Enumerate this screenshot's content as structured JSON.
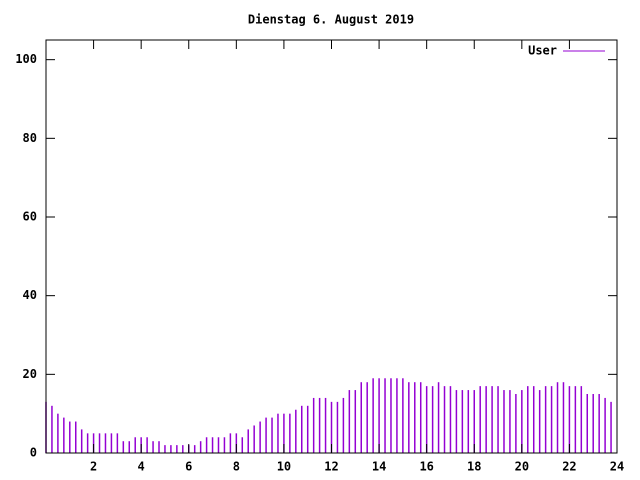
{
  "chart_data": {
    "type": "impulses",
    "title": "Dienstag 6. August 2019",
    "legend": "top-right",
    "xlim": [
      0,
      24
    ],
    "xticks": [
      2,
      4,
      6,
      8,
      10,
      12,
      14,
      16,
      18,
      20,
      22,
      24
    ],
    "ylim": [
      0,
      105
    ],
    "yticks": [
      0,
      20,
      40,
      60,
      80,
      100
    ],
    "x": [
      0,
      0.25,
      0.5,
      0.75,
      1,
      1.25,
      1.5,
      1.75,
      2,
      2.25,
      2.5,
      2.75,
      3,
      3.25,
      3.5,
      3.75,
      4,
      4.25,
      4.5,
      4.75,
      5,
      5.25,
      5.5,
      5.75,
      6,
      6.25,
      6.5,
      6.75,
      7,
      7.25,
      7.5,
      7.75,
      8,
      8.25,
      8.5,
      8.75,
      9,
      9.25,
      9.5,
      9.75,
      10,
      10.25,
      10.5,
      10.75,
      11,
      11.25,
      11.5,
      11.75,
      12,
      12.25,
      12.5,
      12.75,
      13,
      13.25,
      13.5,
      13.75,
      14,
      14.25,
      14.5,
      14.75,
      15,
      15.25,
      15.5,
      15.75,
      16,
      16.25,
      16.5,
      16.75,
      17,
      17.25,
      17.5,
      17.75,
      18,
      18.25,
      18.5,
      18.75,
      19,
      19.25,
      19.5,
      19.75,
      20,
      20.25,
      20.5,
      20.75,
      21,
      21.25,
      21.5,
      21.75,
      22,
      22.25,
      22.5,
      22.75,
      23,
      23.25,
      23.5,
      23.75
    ],
    "series": [
      {
        "name": "User",
        "color": "#9400d3",
        "values": [
          13,
          12,
          10,
          9,
          8,
          8,
          6,
          5,
          5,
          5,
          5,
          5,
          5,
          3,
          3,
          4,
          4,
          4,
          3,
          3,
          2,
          2,
          2,
          2,
          2,
          2,
          3,
          4,
          4,
          4,
          4,
          5,
          5,
          4,
          6,
          7,
          8,
          9,
          9,
          10,
          10,
          10,
          11,
          12,
          12,
          14,
          14,
          14,
          13,
          13,
          14,
          16,
          16,
          18,
          18,
          19,
          19,
          19,
          19,
          19,
          19,
          18,
          18,
          18,
          17,
          17,
          18,
          17,
          17,
          16,
          16,
          16,
          16,
          17,
          17,
          17,
          17,
          16,
          16,
          15,
          16,
          17,
          17,
          16,
          17,
          17,
          18,
          18,
          17,
          17,
          17,
          15,
          15,
          15,
          14,
          13
        ]
      }
    ]
  }
}
